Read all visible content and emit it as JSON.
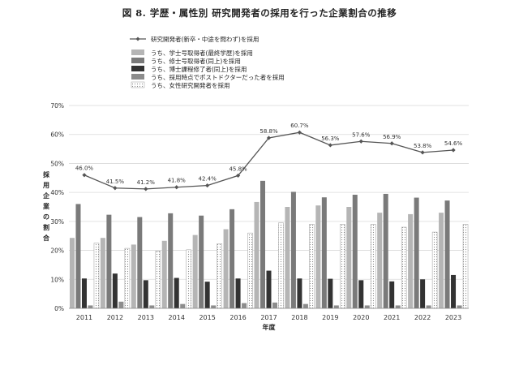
{
  "figure_title": "図 8. 学歴・属性別 研究開発者の採用を行った企業割合の推移",
  "chart_data": {
    "type": "bar",
    "title": "図 8. 学歴・属性別 研究開発者の採用を行った企業割合の推移",
    "xlabel": "年度",
    "ylabel": "採用企業の割合",
    "ylim": [
      0,
      70
    ],
    "yticks": [
      "0%",
      "10%",
      "20%",
      "30%",
      "40%",
      "50%",
      "60%",
      "70%"
    ],
    "grid": true,
    "legend_position": "top-left",
    "categories": [
      "2011",
      "2012",
      "2013",
      "2014",
      "2015",
      "2016",
      "2017",
      "2018",
      "2019",
      "2020",
      "2021",
      "2022",
      "2023"
    ],
    "line": {
      "name": "研究開発者(新卒・中途を問わず)を採用",
      "values": [
        46.0,
        41.5,
        41.2,
        41.8,
        42.4,
        45.8,
        58.8,
        60.7,
        56.3,
        57.6,
        56.9,
        53.8,
        54.6
      ],
      "labels": [
        "46.0%",
        "41.5%",
        "41.2%",
        "41.8%",
        "42.4%",
        "45.8%",
        "58.8%",
        "60.7%",
        "56.3%",
        "57.6%",
        "56.9%",
        "53.8%",
        "54.6%"
      ],
      "color": "#555555"
    },
    "series": [
      {
        "name": "うち、学士号取得者(最終学歴)を採用",
        "values": [
          24.3,
          24.3,
          22.0,
          23.3,
          25.3,
          27.3,
          36.7,
          35.0,
          35.5,
          35.0,
          33.0,
          32.5,
          33.0
        ],
        "color": "#b5b5b5",
        "pattern": "solid"
      },
      {
        "name": "うち、修士号取得者(同上)を採用",
        "values": [
          36.0,
          32.3,
          31.5,
          32.8,
          32.0,
          34.2,
          44.0,
          40.2,
          38.3,
          39.2,
          39.5,
          38.2,
          37.2
        ],
        "color": "#7a7a7a",
        "pattern": "solid"
      },
      {
        "name": "うち、博士課程修了者(同上)を採用",
        "values": [
          10.3,
          12.0,
          9.7,
          10.5,
          9.2,
          10.3,
          13.0,
          10.3,
          10.2,
          9.7,
          9.3,
          10.0,
          11.5
        ],
        "color": "#333333",
        "pattern": "solid"
      },
      {
        "name": "うち、採用時点でポストドクターだった者を採用",
        "values": [
          1.0,
          2.3,
          1.0,
          1.5,
          1.0,
          1.8,
          2.0,
          1.5,
          1.0,
          1.0,
          1.0,
          1.0,
          1.0
        ],
        "color": "#8c8c8c",
        "pattern": "solid"
      },
      {
        "name": "うち、女性研究開発者を採用",
        "values": [
          22.5,
          20.7,
          19.8,
          20.2,
          22.3,
          26.0,
          29.5,
          29.0,
          29.0,
          29.0,
          28.0,
          26.3,
          29.0
        ],
        "color": "#ffffff",
        "pattern": "dots"
      }
    ]
  }
}
